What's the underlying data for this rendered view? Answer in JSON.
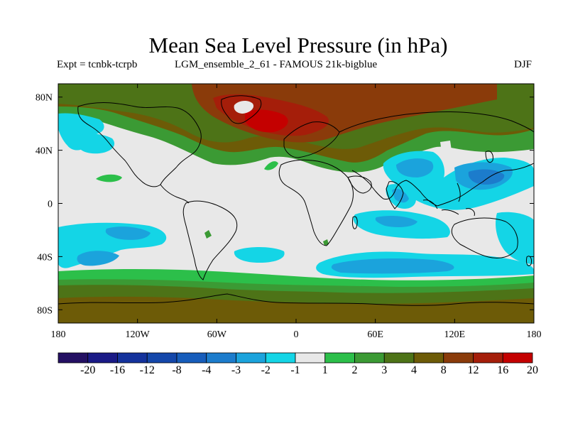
{
  "title": "Mean Sea Level Pressure (in hPa)",
  "subtitle_left": "Expt = tcnbk-tcrpb",
  "subtitle_center": "LGM_ensemble_2_61 - FAMOUS 21k-bigblue",
  "season": "DJF",
  "x_ticks": [
    {
      "value": -180,
      "label": "180"
    },
    {
      "value": -120,
      "label": "120W"
    },
    {
      "value": -60,
      "label": "60W"
    },
    {
      "value": 0,
      "label": "0"
    },
    {
      "value": 60,
      "label": "60E"
    },
    {
      "value": 120,
      "label": "120E"
    },
    {
      "value": 180,
      "label": "180"
    }
  ],
  "y_ticks": [
    {
      "value": 80,
      "label": "80N"
    },
    {
      "value": 40,
      "label": "40N"
    },
    {
      "value": 0,
      "label": "0"
    },
    {
      "value": -40,
      "label": "40S"
    },
    {
      "value": -80,
      "label": "80S"
    }
  ],
  "extent": {
    "lon": [
      -180,
      180
    ],
    "lat": [
      -90,
      90
    ]
  },
  "colorbar": {
    "colors": [
      "#241063",
      "#1a1a86",
      "#14329c",
      "#1447aa",
      "#175dbb",
      "#1c7ccc",
      "#1ba3dc",
      "#14d5e6",
      "#e8e8e8",
      "#2cbf4a",
      "#3b9a34",
      "#4d7317",
      "#6d5b07",
      "#8a3b0a",
      "#a51e0a",
      "#c40000"
    ],
    "labels": [
      "-20",
      "-16",
      "-12",
      "-8",
      "-4",
      "-3",
      "-2",
      "-1",
      "1",
      "2",
      "3",
      "4",
      "8",
      "12",
      "16",
      "20"
    ]
  },
  "colors": {
    "land_outline": "#000000",
    "background": "#e8e8e8",
    "frame": "#000000"
  }
}
